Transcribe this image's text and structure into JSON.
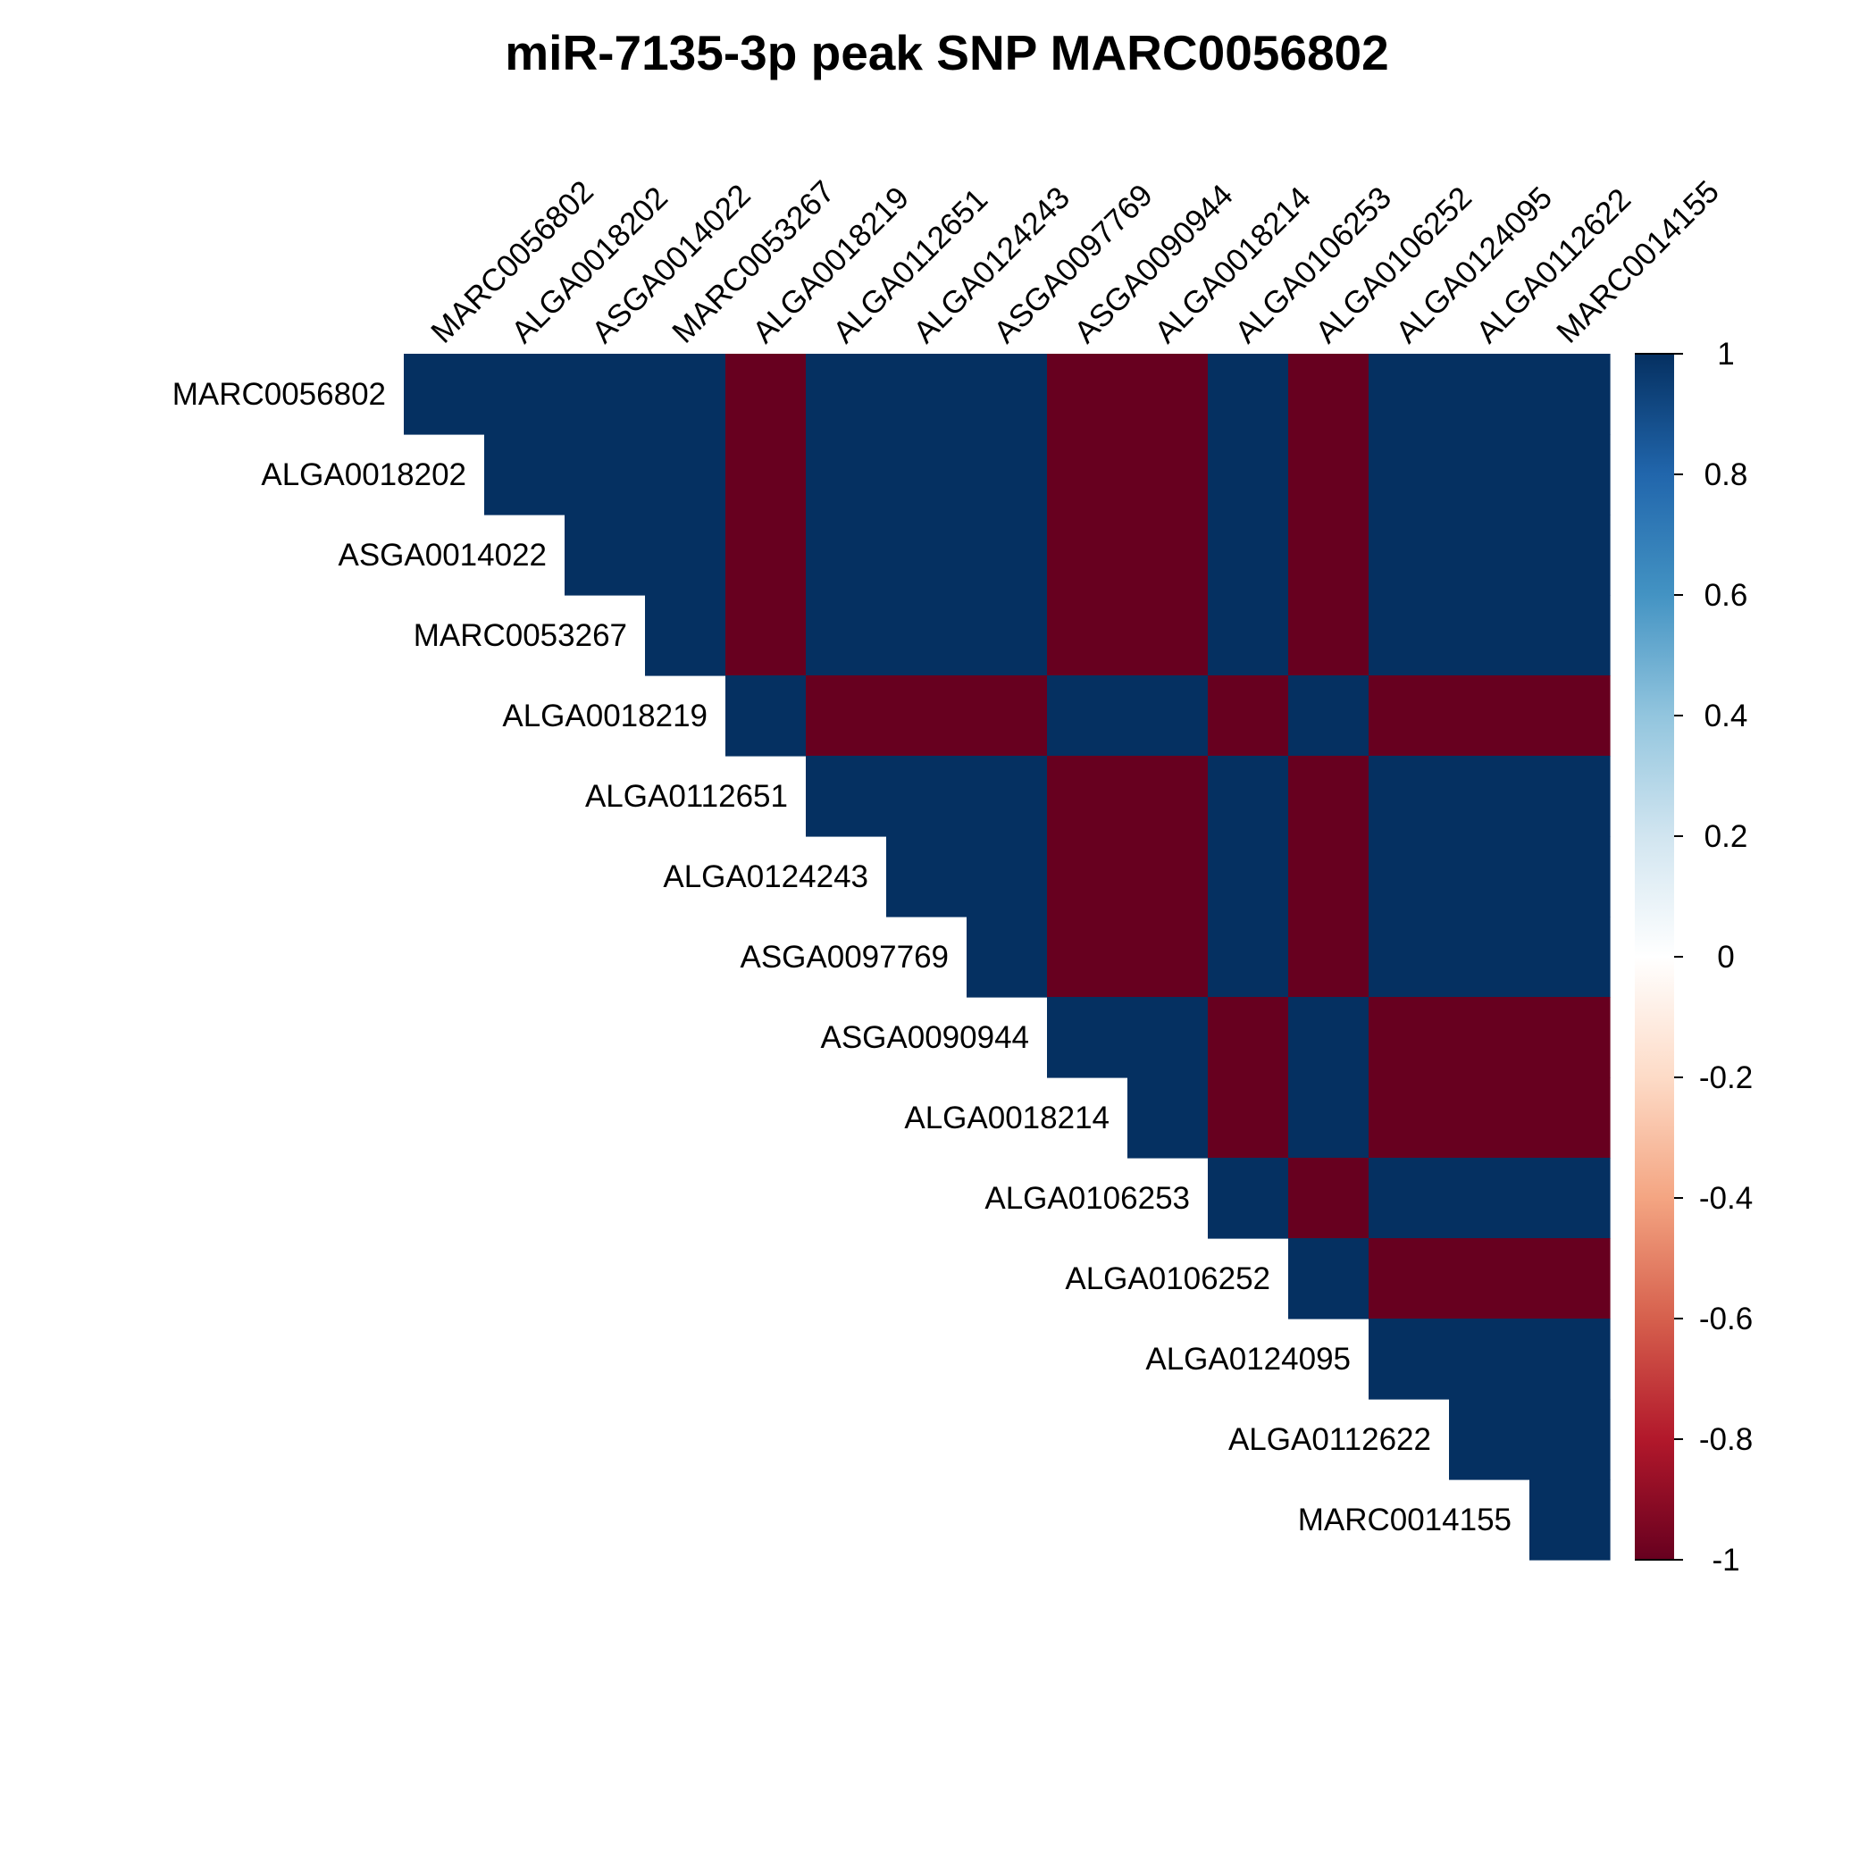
{
  "chart_data": {
    "type": "heatmap",
    "title": "miR-7135-3p peak SNP MARC0056802",
    "layout": "upper-triangle",
    "labels": [
      "MARC0056802",
      "ALGA0018202",
      "ASGA0014022",
      "MARC0053267",
      "ALGA0018219",
      "ALGA0112651",
      "ALGA0124243",
      "ASGA0097769",
      "ASGA0090944",
      "ALGA0018214",
      "ALGA0106253",
      "ALGA0106252",
      "ALGA0124095",
      "ALGA0112622",
      "MARC0014155"
    ],
    "signs": [
      1,
      1,
      1,
      1,
      -1,
      1,
      1,
      1,
      -1,
      -1,
      1,
      -1,
      1,
      1,
      1
    ],
    "value_rule": "correlation(i,j) = signs[i] * signs[j]",
    "values_present": [
      -1,
      1
    ],
    "colorbar": {
      "range": [
        -1,
        1
      ],
      "ticks": [
        "1",
        "0.8",
        "0.6",
        "0.4",
        "0.2",
        "0",
        "-0.2",
        "-0.4",
        "-0.6",
        "-0.8",
        "-1"
      ],
      "position": "right"
    },
    "colors": {
      "positive": "#053061",
      "negative": "#67001F",
      "scale": [
        "#67001F",
        "#B2182B",
        "#D6604D",
        "#F4A582",
        "#FDDBC7",
        "#FFFFFF",
        "#D1E5F0",
        "#92C5DE",
        "#4393C3",
        "#2166AC",
        "#053061"
      ]
    },
    "grid": false
  }
}
